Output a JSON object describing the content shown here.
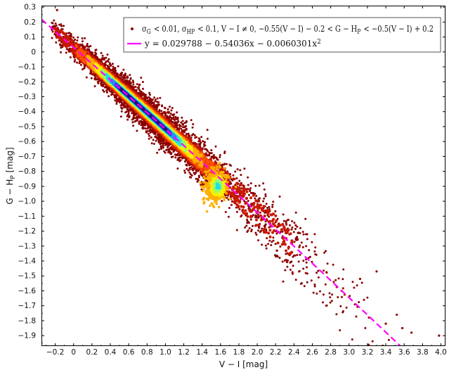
{
  "chart_data": {
    "type": "scatter",
    "xlabel": "V − I [mag]",
    "ylabel": "G − H_P [mag]",
    "xlim": [
      -0.35,
      4.05
    ],
    "ylim": [
      -1.97,
      0.31
    ],
    "x_ticks": [
      -0.2,
      0,
      0.2,
      0.4,
      0.6,
      0.8,
      1.0,
      1.2,
      1.4,
      1.6,
      1.8,
      2.0,
      2.2,
      2.4,
      2.6,
      2.8,
      3.0,
      3.2,
      3.4,
      3.6,
      3.8,
      4.0
    ],
    "x_tick_labels": [
      "−0.2",
      "0",
      "0.2",
      "0.4",
      "0.6",
      "0.8",
      "1.0",
      "1.2",
      "1.4",
      "1.6",
      "1.8",
      "2.0",
      "2.2",
      "2.4",
      "2.6",
      "2.8",
      "3.0",
      "3.2",
      "3.4",
      "3.6",
      "3.8",
      "4.0"
    ],
    "y_ticks": [
      0.3,
      0.2,
      0.1,
      0,
      -0.1,
      -0.2,
      -0.3,
      -0.4,
      -0.5,
      -0.6,
      -0.7,
      -0.8,
      -0.9,
      -1.0,
      -1.1,
      -1.2,
      -1.3,
      -1.4,
      -1.5,
      -1.6,
      -1.7,
      -1.8,
      -1.9
    ],
    "y_tick_labels": [
      "0.3",
      "0.2",
      "0.1",
      "0",
      "−0.1",
      "−0.2",
      "−0.3",
      "−0.4",
      "−0.5",
      "−0.6",
      "−0.7",
      "−0.8",
      "−0.9",
      "−1.0",
      "−1.1",
      "−1.2",
      "−1.3",
      "−1.4",
      "−1.5",
      "−1.6",
      "−1.7",
      "−1.8",
      "−1.9"
    ],
    "legend_placement": "top-right",
    "density": {
      "colormap": "jet",
      "outlier_color": "#8b0000",
      "colormap_stops": [
        "#8b0000",
        "#c81800",
        "#ff5000",
        "#ffb000",
        "#f8f000",
        "#90ff70",
        "#20e0e0",
        "#2090ff",
        "#1c3ad0",
        "#20107a"
      ],
      "description_points_along_relation": [
        {
          "x": -0.2,
          "y_center": 0.13,
          "spread": 0.04
        },
        {
          "x": 0.0,
          "y_center": 0.03,
          "spread": 0.05
        },
        {
          "x": 0.4,
          "y_center": -0.19,
          "spread": 0.06
        },
        {
          "x": 0.8,
          "y_center": -0.41,
          "spread": 0.07
        },
        {
          "x": 1.2,
          "y_center": -0.63,
          "spread": 0.08
        },
        {
          "x": 1.6,
          "y_center": -0.87,
          "spread": 0.09
        },
        {
          "x": 2.0,
          "y_center": -1.07,
          "spread": 0.1
        },
        {
          "x": 2.4,
          "y_center": -1.3,
          "spread": 0.11
        },
        {
          "x": 2.8,
          "y_center": -1.52,
          "spread": 0.12
        },
        {
          "x": 3.2,
          "y_center": -1.74,
          "spread": 0.12
        }
      ],
      "isolated_points": [
        {
          "x": -0.18,
          "y": 0.28
        },
        {
          "x": 3.58,
          "y": -1.85
        },
        {
          "x": 3.68,
          "y": -1.88
        },
        {
          "x": 3.98,
          "y": -1.9
        },
        {
          "x": 3.4,
          "y": -1.82
        },
        {
          "x": 3.3,
          "y": -1.47
        },
        {
          "x": 3.52,
          "y": -1.76
        },
        {
          "x": 3.12,
          "y": -1.52
        }
      ]
    },
    "fit_line": {
      "color": "#ff00ff",
      "style": "dashed",
      "coefficients": [
        0.029788,
        -0.54036,
        -0.0060301
      ],
      "x_range": [
        -0.35,
        3.56
      ]
    },
    "legend": {
      "entries": [
        {
          "kind": "point",
          "color": "#8b0000",
          "label": "σ_G < 0.01,  σ_HP < 0.1,  V − I ≠ 0,  −0.55(V − I) − 0.2 < G − H_P < −0.5(V − I) + 0.2"
        },
        {
          "kind": "line",
          "color": "#ff00ff",
          "label": "y = 0.029788 − 0.54036x − 0.0060301x²"
        }
      ]
    }
  }
}
